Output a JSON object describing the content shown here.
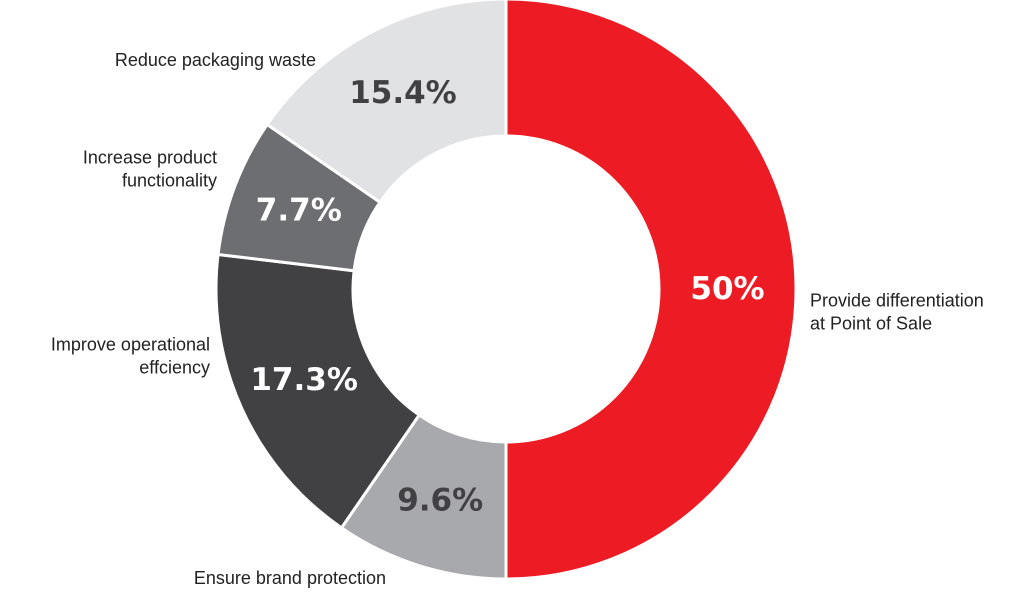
{
  "chart_data": {
    "type": "pie",
    "title": "",
    "donut": true,
    "categories": [
      "Provide differentiation at Point of Sale",
      "Ensure brand protection",
      "Improve operational effciency",
      "Increase product functionality",
      "Reduce packaging waste"
    ],
    "values": [
      50,
      9.6,
      17.3,
      7.7,
      15.4
    ],
    "value_labels": [
      "50%",
      "9.6%",
      "17.3%",
      "7.7%",
      "15.4%"
    ],
    "label_lines": [
      [
        "Provide differentiation",
        "at Point of Sale"
      ],
      [
        "Ensure brand protection"
      ],
      [
        "Improve operational",
        "effciency"
      ],
      [
        "Increase product",
        "functionality"
      ],
      [
        "Reduce packaging waste"
      ]
    ],
    "colors": [
      "#ed1c24",
      "#a7a9ac",
      "#414042",
      "#6d6e71",
      "#e1e2e4"
    ],
    "value_label_colors": [
      "#ffffff",
      "#414042",
      "#ffffff",
      "#ffffff",
      "#414042"
    ],
    "start": "12 o'clock",
    "direction": "clockwise"
  }
}
